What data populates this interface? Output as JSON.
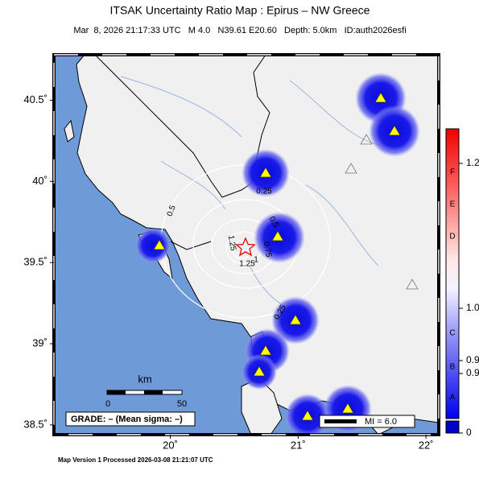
{
  "header": {
    "title": "ITSAK Uncertainty Ratio Map : Epirus – NW Greece",
    "subtitle": "Mar  8, 2026 21:17:33 UTC   M 4.0   N39.61 E20.60   Depth: 5.0km   ID:auth2026esfi"
  },
  "map": {
    "lon_range": [
      19.09,
      22.1
    ],
    "lat_range": [
      38.44,
      40.78
    ],
    "lat_ticks": [
      {
        "value": 40.5,
        "label": "40.5˚"
      },
      {
        "value": 40,
        "label": "40˚"
      },
      {
        "value": 39.5,
        "label": "39.5˚"
      },
      {
        "value": 39,
        "label": "39˚"
      },
      {
        "value": 38.5,
        "label": "38.5˚"
      }
    ],
    "lon_ticks": [
      {
        "value": 20,
        "label": "20˚"
      },
      {
        "value": 21,
        "label": "21˚"
      },
      {
        "value": 22,
        "label": "22˚"
      }
    ],
    "contour_labels": [
      "0.25",
      "0.5",
      "0.5",
      "0.75",
      "1",
      "1.25",
      "1.25",
      "0.25"
    ],
    "scale_bar": {
      "unit": "km",
      "labels": [
        "0",
        "50"
      ]
    },
    "grade": "GRADE: – (Mean sigma: –)",
    "intensity_legend": "MI = 6.0"
  },
  "colorbar": {
    "grades": [
      "F",
      "E",
      "D",
      "C",
      "B",
      "A"
    ],
    "labels": [
      "1.2",
      "1.0",
      "0.9",
      "0.9",
      "0"
    ]
  },
  "footer": "Map Version 1 Processed 2026-03-08 21:21:07 UTC"
}
